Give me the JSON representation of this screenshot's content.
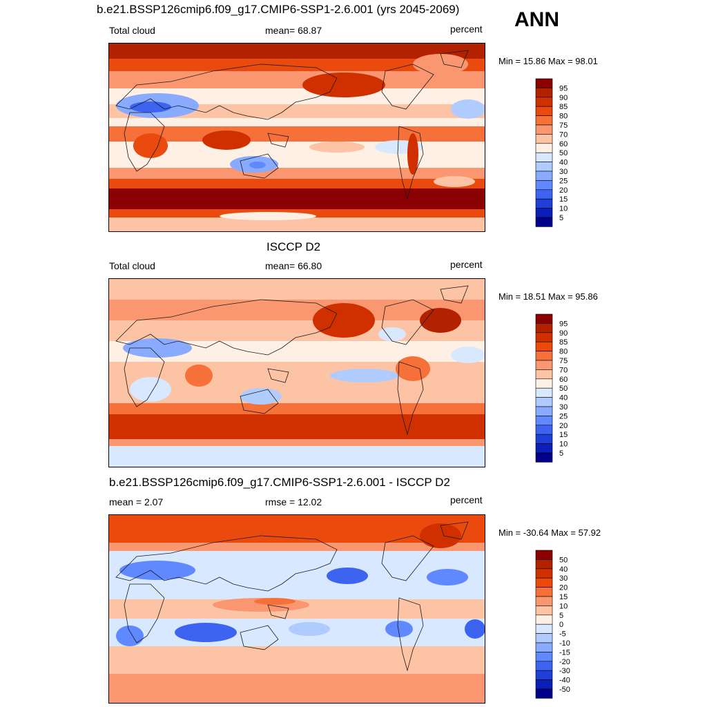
{
  "season": "ANN",
  "panels": [
    {
      "title": "b.e21.BSSP126cmip6.f09_g17.CMIP6-SSP1-2.6.001 (yrs 2045-2069)",
      "left_label": "Total cloud",
      "center_label": "mean=  68.87",
      "right_label": "percent",
      "minmax": "Min =  15.86 Max =  98.01",
      "colorbar_ticks": [
        "95",
        "90",
        "85",
        "80",
        "75",
        "70",
        "60",
        "50",
        "40",
        "30",
        "25",
        "20",
        "15",
        "10",
        "5"
      ],
      "colors": [
        "#8b0000",
        "#b22200",
        "#d03000",
        "#ea4a0e",
        "#f6703a",
        "#fa9770",
        "#fcc3a4",
        "#fff0e6",
        "#d8e8ff",
        "#b0ccff",
        "#88aaff",
        "#6088ff",
        "#3c64f0",
        "#1f3fd8",
        "#0a1fb8",
        "#00008b"
      ]
    },
    {
      "title": "ISCCP D2",
      "left_label": "Total cloud",
      "center_label": "mean=  66.80",
      "right_label": "percent",
      "minmax": "Min =  18.51 Max =  95.86",
      "colorbar_ticks": [
        "95",
        "90",
        "85",
        "80",
        "75",
        "70",
        "60",
        "50",
        "40",
        "30",
        "25",
        "20",
        "15",
        "10",
        "5"
      ],
      "colors": [
        "#8b0000",
        "#b22200",
        "#d03000",
        "#ea4a0e",
        "#f6703a",
        "#fa9770",
        "#fcc3a4",
        "#fff0e6",
        "#d8e8ff",
        "#b0ccff",
        "#88aaff",
        "#6088ff",
        "#3c64f0",
        "#1f3fd8",
        "#0a1fb8",
        "#00008b"
      ]
    },
    {
      "title": "b.e21.BSSP126cmip6.f09_g17.CMIP6-SSP1-2.6.001 - ISCCP D2",
      "left_label": "mean =   2.07",
      "center_label": "rmse =  12.02",
      "right_label": "percent",
      "minmax": "Min = -30.64 Max =  57.92",
      "colorbar_ticks": [
        "50",
        "40",
        "30",
        "20",
        "15",
        "10",
        "5",
        "0",
        "-5",
        "-10",
        "-15",
        "-20",
        "-30",
        "-40",
        "-50"
      ],
      "colors": [
        "#8b0000",
        "#b22200",
        "#d03000",
        "#ea4a0e",
        "#f6703a",
        "#fa9770",
        "#fcc3a4",
        "#fff0e6",
        "#d8e8ff",
        "#b0ccff",
        "#88aaff",
        "#6088ff",
        "#3c64f0",
        "#1f3fd8",
        "#0a1fb8",
        "#00008b"
      ]
    }
  ]
}
